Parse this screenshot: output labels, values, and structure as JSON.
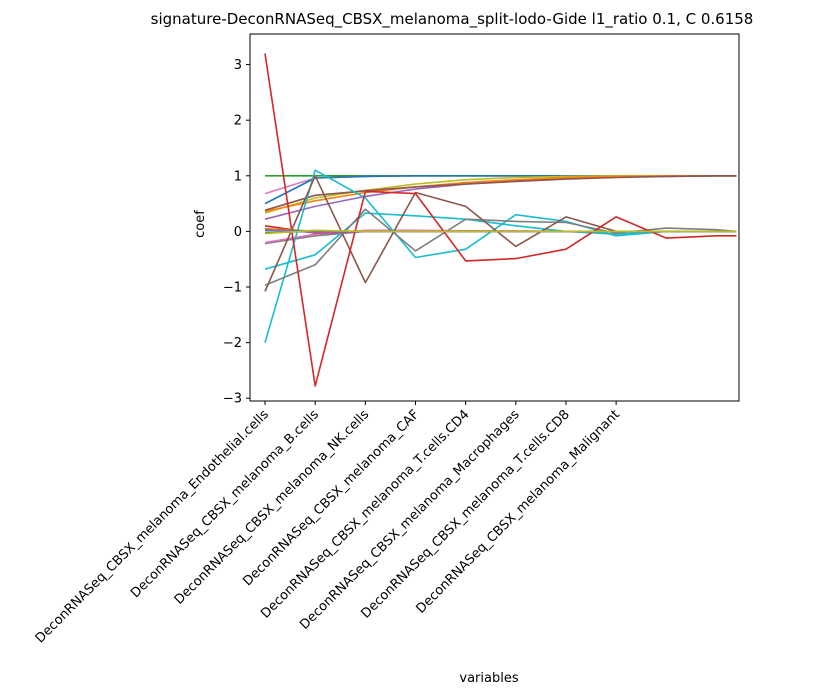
{
  "chart_data": {
    "type": "line",
    "title": "signature-DeconRNASeq_CBSX_melanoma_split-lodo-Gide l1_ratio 0.1, C 0.6158",
    "xlabel": "variables",
    "ylabel": "coef",
    "ylim": [
      -3.05,
      3.55
    ],
    "xlim": [
      -0.3,
      9.45
    ],
    "yticks": [
      -3,
      -2,
      -1,
      0,
      1,
      2,
      3
    ],
    "ytick_labels": [
      "−3",
      "−2",
      "−1",
      "0",
      "1",
      "2",
      "3"
    ],
    "categories": [
      "DeconRNASeq_CBSX_melanoma_Endothelial.cells",
      "DeconRNASeq_CBSX_melanoma_B.cells",
      "DeconRNASeq_CBSX_melanoma_NK.cells",
      "DeconRNASeq_CBSX_melanoma_CAF",
      "DeconRNASeq_CBSX_melanoma_T.cells.CD4",
      "DeconRNASeq_CBSX_melanoma_Macrophages",
      "DeconRNASeq_CBSX_melanoma_T.cells.CD8",
      "DeconRNASeq_CBSX_melanoma_Malignant"
    ],
    "x": [
      0,
      1,
      2,
      3,
      4,
      5,
      6,
      7,
      8,
      9,
      9.4
    ],
    "grid": false,
    "legend": "none",
    "series": [
      {
        "color": "#2ca02c",
        "values": [
          1.0,
          1.0,
          1.0,
          1.0,
          1.0,
          1.0,
          1.0,
          1.0,
          1.0,
          1.0,
          1.0
        ]
      },
      {
        "color": "#e377c2",
        "values": [
          0.68,
          0.96,
          0.99,
          1.0,
          1.0,
          1.0,
          1.0,
          1.0,
          1.0,
          1.0,
          1.0
        ]
      },
      {
        "color": "#9467bd",
        "values": [
          0.22,
          0.45,
          0.63,
          0.76,
          0.85,
          0.91,
          0.95,
          0.98,
          0.99,
          1.0,
          1.0
        ]
      },
      {
        "color": "#1f77b4",
        "values": [
          0.5,
          0.96,
          0.99,
          1.0,
          1.0,
          1.0,
          1.0,
          1.0,
          1.0,
          1.0,
          1.0
        ]
      },
      {
        "color": "#bcbd22",
        "values": [
          0.33,
          0.6,
          0.74,
          0.85,
          0.93,
          0.97,
          0.99,
          1.0,
          1.0,
          1.0,
          1.0
        ]
      },
      {
        "color": "#ff7f0e",
        "values": [
          0.36,
          0.55,
          0.7,
          0.8,
          0.88,
          0.93,
          0.97,
          0.99,
          1.0,
          1.0,
          1.0
        ]
      },
      {
        "color": "#8c564b",
        "values": [
          0.38,
          0.65,
          0.73,
          0.8,
          0.85,
          0.9,
          0.94,
          0.97,
          0.99,
          1.0,
          1.0
        ]
      },
      {
        "color": "#7f7f7f",
        "values": [
          -0.22,
          -0.08,
          0.0,
          0.0,
          0.0,
          0.0,
          0.0,
          0.0,
          0.0,
          0.0,
          0.0
        ]
      },
      {
        "color": "#e377c2",
        "values": [
          -0.2,
          -0.05,
          0.02,
          0.02,
          0.01,
          0.01,
          0.0,
          0.0,
          0.0,
          0.0,
          0.0
        ]
      },
      {
        "color": "#17becf",
        "values": [
          -2.0,
          1.1,
          0.6,
          -0.47,
          -0.32,
          0.3,
          0.18,
          -0.08,
          0.0,
          0.0,
          0.0
        ]
      },
      {
        "color": "#17becf",
        "values": [
          -0.68,
          -0.42,
          0.33,
          0.28,
          0.22,
          0.1,
          0.0,
          -0.05,
          0.0,
          0.0,
          0.0
        ]
      },
      {
        "color": "#7f7f7f",
        "values": [
          -0.97,
          -0.6,
          0.4,
          -0.35,
          0.22,
          0.18,
          0.16,
          -0.03,
          0.06,
          0.03,
          0.0
        ]
      },
      {
        "color": "#8c564b",
        "values": [
          -1.08,
          1.0,
          -0.92,
          0.7,
          0.45,
          -0.27,
          0.26,
          0.0,
          0.0,
          0.0,
          0.0
        ]
      },
      {
        "color": "#d62728",
        "values": [
          3.2,
          -2.78,
          0.72,
          0.68,
          -0.53,
          -0.49,
          -0.32,
          0.26,
          -0.12,
          -0.08,
          -0.08
        ]
      },
      {
        "color": "#d62728",
        "values": [
          0.1,
          -0.03,
          0.0,
          0.0,
          0.0,
          0.0,
          0.0,
          0.0,
          0.0,
          0.0,
          0.0
        ]
      },
      {
        "color": "#ff7f0e",
        "values": [
          0.05,
          0.0,
          0.0,
          0.0,
          0.0,
          0.0,
          0.0,
          0.0,
          0.0,
          0.0,
          0.0
        ]
      },
      {
        "color": "#1f77b4",
        "values": [
          0.02,
          0.01,
          0.0,
          0.0,
          0.0,
          0.0,
          0.0,
          0.0,
          0.0,
          0.0,
          0.0
        ]
      },
      {
        "color": "#2ca02c",
        "values": [
          -0.02,
          0.0,
          0.0,
          0.0,
          0.0,
          0.0,
          0.0,
          0.0,
          0.0,
          0.0,
          0.0
        ]
      },
      {
        "color": "#9467bd",
        "values": [
          0.03,
          -0.02,
          0.0,
          0.0,
          0.0,
          0.0,
          0.0,
          0.0,
          0.0,
          0.0,
          0.0
        ]
      },
      {
        "color": "#bcbd22",
        "values": [
          -0.04,
          0.02,
          0.0,
          0.0,
          0.0,
          0.0,
          0.0,
          0.0,
          0.0,
          0.0,
          0.0
        ]
      }
    ]
  }
}
